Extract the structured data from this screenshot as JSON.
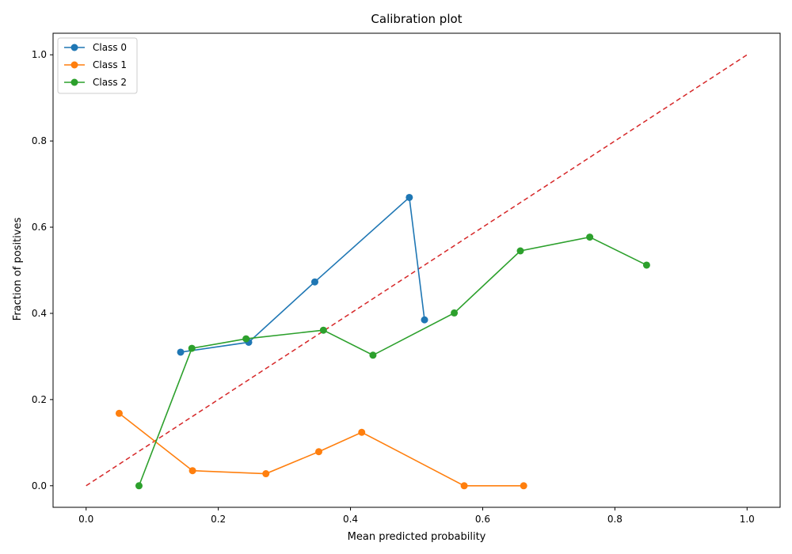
{
  "chart_data": {
    "type": "line",
    "title": "Calibration plot",
    "xlabel": "Mean predicted probability",
    "ylabel": "Fraction of positives",
    "xlim": [
      -0.05,
      1.05
    ],
    "ylim": [
      -0.05,
      1.05
    ],
    "xticks": [
      "0.0",
      "0.2",
      "0.4",
      "0.6",
      "0.8",
      "1.0"
    ],
    "yticks": [
      "0.0",
      "0.2",
      "0.4",
      "0.6",
      "0.8",
      "1.0"
    ],
    "grid": false,
    "legend_position": "top-left",
    "reference_line": {
      "style": "dashed",
      "color": "#d62728",
      "x": [
        0.0,
        1.0
      ],
      "y": [
        0.0,
        1.0
      ]
    },
    "series": [
      {
        "name": "Class 0",
        "color": "#1f77b4",
        "marker": "circle",
        "x": [
          0.143,
          0.246,
          0.346,
          0.489,
          0.512
        ],
        "y": [
          0.31,
          0.333,
          0.473,
          0.669,
          0.385
        ]
      },
      {
        "name": "Class 1",
        "color": "#ff7f0e",
        "marker": "circle",
        "x": [
          0.05,
          0.161,
          0.272,
          0.352,
          0.417,
          0.572,
          0.662
        ],
        "y": [
          0.168,
          0.035,
          0.028,
          0.079,
          0.124,
          0.0,
          0.0
        ]
      },
      {
        "name": "Class 2",
        "color": "#2ca02c",
        "marker": "circle",
        "x": [
          0.08,
          0.16,
          0.242,
          0.359,
          0.434,
          0.557,
          0.657,
          0.762,
          0.848
        ],
        "y": [
          0.0,
          0.319,
          0.341,
          0.361,
          0.303,
          0.401,
          0.545,
          0.577,
          0.512
        ]
      }
    ]
  }
}
